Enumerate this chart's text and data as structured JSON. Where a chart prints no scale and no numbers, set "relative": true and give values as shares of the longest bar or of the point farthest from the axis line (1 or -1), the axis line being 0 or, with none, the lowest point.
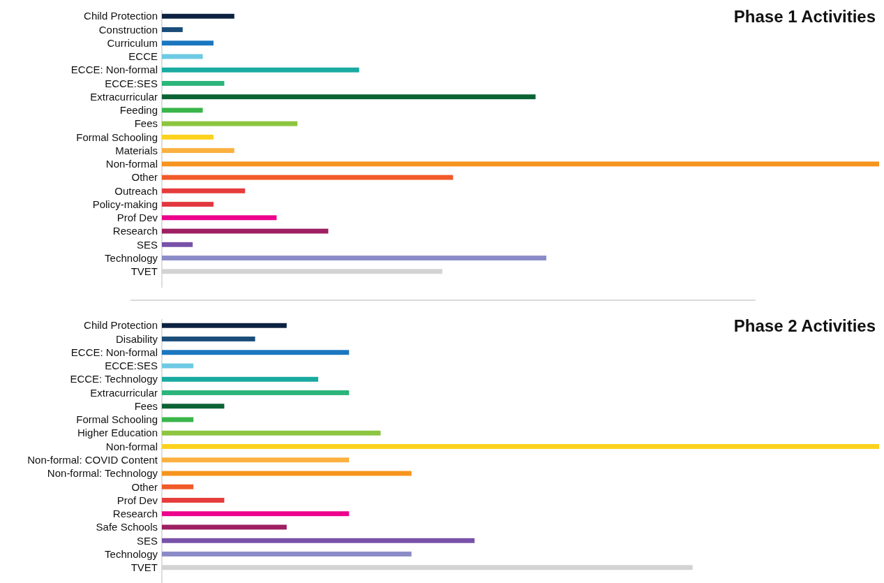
{
  "chart_data": [
    {
      "type": "bar",
      "orientation": "horizontal",
      "relative": true,
      "title": "Phase 1 Activities",
      "categories": [
        "Child Protection",
        "Construction",
        "Curriculum",
        "ECCE",
        "ECCE: Non-formal",
        "ECCE:SES",
        "Extracurricular",
        "Feeding",
        "Fees",
        "Formal Schooling",
        "Materials",
        "Non-formal",
        "Other",
        "Outreach",
        "Policy-making",
        "Prof Dev",
        "Research",
        "SES",
        "Technology",
        "TVET"
      ],
      "values": [
        0.101,
        0.029,
        0.072,
        0.057,
        0.275,
        0.087,
        0.521,
        0.057,
        0.189,
        0.072,
        0.101,
        1,
        0.406,
        0.116,
        0.072,
        0.16,
        0.232,
        0.043,
        0.536,
        0.391
      ],
      "colors": [
        "#0d2240",
        "#1a4d7a",
        "#1a76bf",
        "#6ecae4",
        "#19aaa0",
        "#2bb57a",
        "#0b6334",
        "#3ab54a",
        "#8cc540",
        "#fcd21c",
        "#fbb040",
        "#f7941d",
        "#f15a29",
        "#e63c3c",
        "#e2373f",
        "#ec008c",
        "#9e1f63",
        "#7851a9",
        "#8b8cc7",
        "#d3d3d3"
      ]
    },
    {
      "type": "bar",
      "orientation": "horizontal",
      "relative": true,
      "title": "Phase 2 Activities",
      "categories": [
        "Child Protection",
        "Disability",
        "ECCE: Non-formal",
        "ECCE:SES",
        "ECCE: Technology",
        "Extracurricular",
        "Fees",
        "Formal Schooling",
        "Higher Education",
        "Non-formal",
        "Non-formal: COVID Content",
        "Non-formal: Technology",
        "Other",
        "Prof Dev",
        "Research",
        "Safe Schools",
        "SES",
        "Technology",
        "TVET"
      ],
      "values": [
        0.174,
        0.13,
        0.261,
        0.044,
        0.218,
        0.261,
        0.087,
        0.044,
        0.305,
        1,
        0.261,
        0.348,
        0.044,
        0.087,
        0.261,
        0.174,
        0.436,
        0.348,
        0.74
      ],
      "colors": [
        "#0d2240",
        "#1a4d7a",
        "#1a76bf",
        "#6ecae4",
        "#19aaa0",
        "#2bb57a",
        "#0b6334",
        "#3ab54a",
        "#8cc540",
        "#fcd21c",
        "#fbb040",
        "#f7941d",
        "#f15a29",
        "#e63c3c",
        "#ec008c",
        "#9e1f63",
        "#7851a9",
        "#8b8cc7",
        "#d3d3d3"
      ]
    }
  ]
}
